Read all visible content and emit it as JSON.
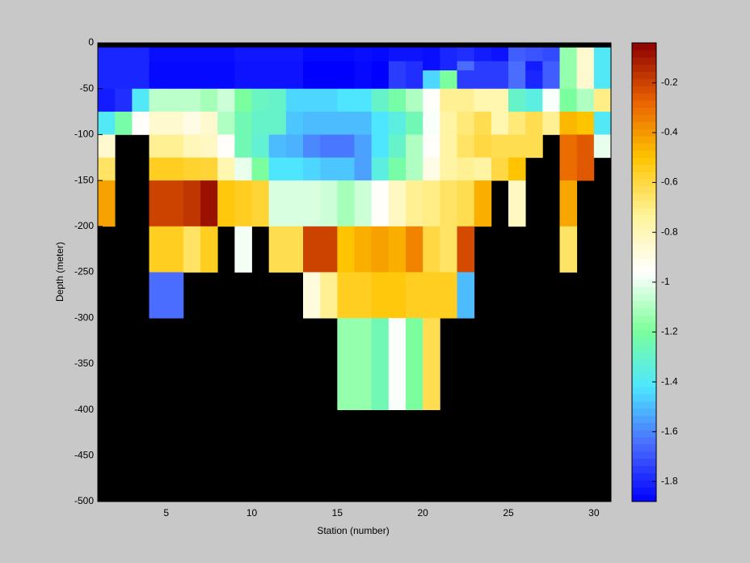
{
  "chart_data": {
    "type": "heatmap",
    "x_label": "Station (number)",
    "y_label": "Depth (meter)",
    "x": [
      1,
      2,
      3,
      4,
      5,
      6,
      7,
      8,
      9,
      10,
      11,
      12,
      13,
      14,
      15,
      16,
      17,
      18,
      19,
      20,
      21,
      22,
      23,
      24,
      25,
      26,
      27,
      28,
      29,
      30,
      31
    ],
    "y": [
      -5,
      -20,
      -30,
      -50,
      -75,
      -100,
      -125,
      -150,
      -200,
      -250,
      -300,
      -400
    ],
    "values": [
      [
        -1.8,
        -1.8,
        -1.8,
        -1.85,
        -1.85,
        -1.85,
        -1.85,
        -1.85,
        -1.83,
        -1.83,
        -1.83,
        -1.83,
        -1.86,
        -1.86,
        -1.86,
        -1.85,
        -1.86,
        -1.84,
        -1.84,
        -1.85,
        -1.8,
        -1.78,
        -1.82,
        -1.84,
        -1.68,
        -1.7,
        -1.72,
        -1.15,
        -0.85,
        -1.4
      ],
      [
        -1.8,
        -1.8,
        -1.8,
        -1.86,
        -1.86,
        -1.86,
        -1.86,
        -1.86,
        -1.84,
        -1.84,
        -1.84,
        -1.84,
        -1.88,
        -1.88,
        -1.88,
        -1.86,
        -1.88,
        -1.75,
        -1.78,
        -1.85,
        -1.8,
        -1.65,
        -1.75,
        -1.75,
        -1.65,
        -1.82,
        -1.68,
        -1.15,
        -0.85,
        -1.4
      ],
      [
        -1.8,
        -1.8,
        -1.8,
        -1.86,
        -1.86,
        -1.86,
        -1.86,
        -1.86,
        -1.84,
        -1.84,
        -1.84,
        -1.84,
        -1.88,
        -1.88,
        -1.88,
        -1.86,
        -1.88,
        -1.75,
        -1.78,
        -1.45,
        -1.2,
        -1.75,
        -1.75,
        -1.75,
        -1.65,
        -1.8,
        -1.68,
        -1.15,
        -0.85,
        -1.4
      ],
      [
        -1.82,
        -1.78,
        -1.4,
        -1.08,
        -1.08,
        -1.08,
        -1.12,
        -1.05,
        -1.2,
        -1.28,
        -1.3,
        -1.45,
        -1.45,
        -1.45,
        -1.42,
        -1.42,
        -1.3,
        -1.22,
        -1.1,
        -0.95,
        -0.72,
        -0.72,
        -0.78,
        -0.78,
        -1.3,
        -1.35,
        -0.97,
        -1.2,
        -1.1,
        -0.7
      ],
      [
        -1.4,
        -1.22,
        -0.95,
        -0.85,
        -0.85,
        -0.9,
        -0.85,
        -1.1,
        -1.25,
        -1.3,
        -1.3,
        -1.48,
        -1.5,
        -1.5,
        -1.5,
        -1.5,
        -1.42,
        -1.35,
        -1.25,
        -0.97,
        -0.75,
        -0.68,
        -0.62,
        -0.78,
        -0.68,
        -0.62,
        -0.72,
        -0.47,
        -0.5,
        -1.4
      ],
      [
        -0.85,
        null,
        null,
        -0.72,
        -0.72,
        -0.8,
        -0.82,
        -0.95,
        -1.25,
        -1.32,
        -1.5,
        -1.52,
        -1.6,
        -1.63,
        -1.63,
        -1.55,
        -1.42,
        -1.3,
        -1.1,
        -0.95,
        -0.75,
        -0.65,
        -0.6,
        -0.62,
        -0.62,
        -0.62,
        null,
        -0.3,
        -0.25,
        -1.0
      ],
      [
        -0.65,
        null,
        null,
        -0.55,
        -0.55,
        -0.57,
        -0.58,
        -0.78,
        -1.0,
        -1.2,
        -1.42,
        -1.42,
        -1.45,
        -1.48,
        -1.48,
        -1.55,
        -1.35,
        -1.22,
        -1.1,
        -0.9,
        -0.75,
        -0.72,
        -0.75,
        -0.6,
        -0.5,
        null,
        null,
        -0.3,
        -0.25,
        null
      ],
      [
        -0.42,
        null,
        null,
        -0.2,
        -0.2,
        -0.17,
        -0.08,
        -0.52,
        -0.55,
        -0.58,
        -1.03,
        -1.03,
        -1.03,
        -1.05,
        -1.12,
        -1.05,
        -0.95,
        -0.82,
        -0.72,
        -0.7,
        -0.65,
        -0.62,
        -0.45,
        null,
        -0.82,
        null,
        null,
        -0.43,
        null,
        null
      ],
      [
        null,
        null,
        null,
        -0.55,
        -0.55,
        -0.65,
        -0.55,
        null,
        -0.98,
        null,
        -0.62,
        -0.62,
        -0.2,
        -0.2,
        -0.5,
        -0.45,
        -0.42,
        -0.45,
        -0.35,
        -0.6,
        -0.65,
        -0.22,
        null,
        null,
        null,
        null,
        null,
        -0.65,
        null,
        null
      ],
      [
        null,
        null,
        null,
        -1.65,
        -1.65,
        null,
        null,
        null,
        null,
        null,
        null,
        null,
        -0.88,
        -0.72,
        -0.55,
        -0.55,
        -0.52,
        -0.52,
        -0.55,
        -0.55,
        -0.55,
        -1.5,
        null,
        null,
        null,
        null,
        null,
        null,
        null,
        null
      ],
      [
        null,
        null,
        null,
        null,
        null,
        null,
        null,
        null,
        null,
        null,
        null,
        null,
        null,
        null,
        -1.15,
        -1.15,
        -1.25,
        -0.97,
        -1.2,
        -0.62,
        null,
        null,
        null,
        null,
        null,
        null,
        null,
        null,
        null,
        null
      ]
    ],
    "xlim": [
      1,
      31
    ],
    "ylim": [
      -500,
      0
    ],
    "xticks": [
      5,
      10,
      15,
      20,
      25,
      30
    ],
    "yticks": [
      0,
      -50,
      -100,
      -150,
      -200,
      -250,
      -300,
      -350,
      -400,
      -450,
      -500
    ],
    "nan_color": "#000000",
    "colorbar": {
      "clim": [
        -1.88,
        -0.04
      ],
      "ticks": [
        -0.2,
        -0.4,
        -0.6,
        -0.8,
        -1,
        -1.2,
        -1.4,
        -1.6,
        -1.8
      ],
      "colormap": [
        "#0000ff",
        "#4a6cff",
        "#4ee6ff",
        "#7dff9a",
        "#ffffff",
        "#fff39a",
        "#ffc400",
        "#e86000",
        "#8b0000"
      ]
    }
  }
}
